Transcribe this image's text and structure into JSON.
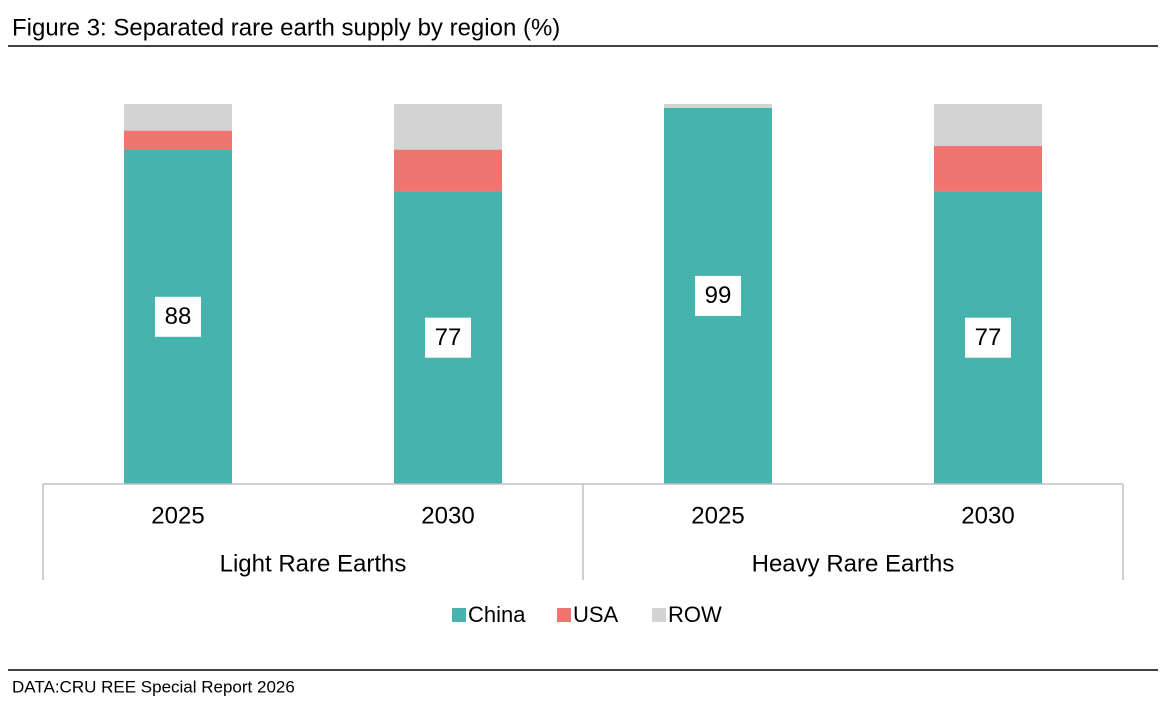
{
  "chart_data": {
    "type": "stacked_bar",
    "title": "Figure 3: Separated rare earth supply by region (%)",
    "categories": [
      "2025",
      "2030",
      "2025",
      "2030"
    ],
    "groups": [
      "Light Rare Earths",
      "Heavy Rare Earths"
    ],
    "series": [
      {
        "name": "China",
        "color": "#46b3ac",
        "values": [
          88,
          77,
          99,
          77
        ],
        "labels": true
      },
      {
        "name": "USA",
        "color": "#f07470",
        "values": [
          5,
          11,
          0,
          12
        ]
      },
      {
        "name": "ROW",
        "color": "#d3d3d3",
        "values": [
          7,
          12,
          1,
          11
        ]
      }
    ],
    "ylim": [
      0,
      100
    ],
    "source": "DATA:CRU REE Special Report 2026"
  }
}
